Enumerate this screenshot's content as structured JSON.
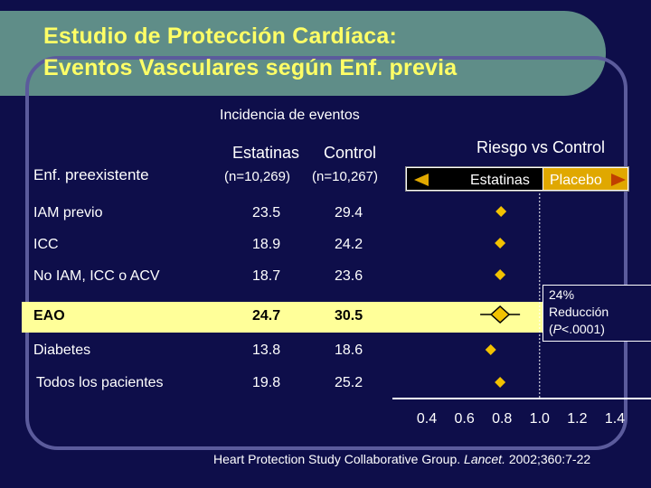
{
  "title": {
    "line1": "Estudio de Protección Cardíaca:",
    "line2": "Eventos Vasculares según Enf. previa"
  },
  "header": {
    "incidence": "Incidencia de eventos",
    "col_statins": "Estatinas",
    "col_control": "Control",
    "n_statins": "(n=10,269)",
    "n_control": "(n=10,267)",
    "row_header": "Enf. preexistente",
    "risk": "Riesgo vs Control"
  },
  "legend": {
    "left_label": "Estatinas",
    "right_label": "Placebo",
    "left_color": "#000000",
    "right_color": "#e0a800",
    "arrow_color": "#e0a800"
  },
  "rows": [
    {
      "label": "IAM previo",
      "statins": "23.5",
      "control": "29.4",
      "ratio": 0.795,
      "highlight": false
    },
    {
      "label": "ICC",
      "statins": "18.9",
      "control": "24.2",
      "ratio": 0.79,
      "highlight": false
    },
    {
      "label": "No IAM, ICC o ACV",
      "statins": "18.7",
      "control": "23.6",
      "ratio": 0.79,
      "highlight": false
    },
    {
      "label": "EAO",
      "statins": "24.7",
      "control": "30.5",
      "ratio": 0.79,
      "highlight": true
    },
    {
      "label": "Diabetes",
      "statins": "13.8",
      "control": "18.6",
      "ratio": 0.74,
      "highlight": false
    },
    {
      "label": "Todos los pacientes",
      "statins": "19.8",
      "control": "25.2",
      "ratio": 0.79,
      "highlight": false
    }
  ],
  "axis": {
    "ticks": [
      "0.4",
      "0.6",
      "0.8",
      "1.0",
      "1.2",
      "1.4"
    ],
    "tick_values": [
      0.4,
      0.6,
      0.8,
      1.0,
      1.2,
      1.4
    ]
  },
  "note": {
    "line1": "24%",
    "line2": "Reducción",
    "p_label": "P",
    "p_value": "<.0001)"
  },
  "source": {
    "text": "Heart Protection Study Collaborative Group.",
    "journal": "Lancet.",
    "ref": "2002;360:7-22"
  },
  "colors": {
    "background": "#0e0e4a",
    "title_bar": "#5f8d88",
    "title_text": "#ffff66",
    "highlight": "#ffff99",
    "marker": "#f2c200",
    "frame": "#5b5b9c"
  }
}
